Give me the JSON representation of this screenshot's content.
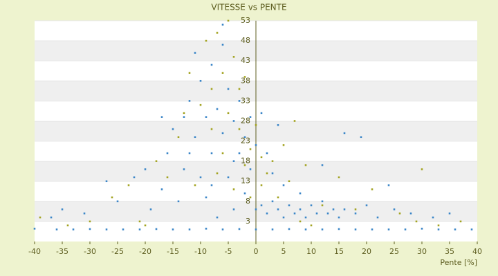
{
  "chart_data": {
    "type": "scatter",
    "title": "VITESSE vs PENTE",
    "x_label": "Pente [%]",
    "xlim": [
      -40,
      40
    ],
    "xticks": [
      -40,
      -35,
      -30,
      -25,
      -20,
      -15,
      -10,
      -5,
      0,
      5,
      10,
      15,
      20,
      25,
      30,
      35,
      40
    ],
    "ylim": [
      -2,
      53
    ],
    "yticks": [
      3,
      8,
      13,
      18,
      23,
      28,
      33,
      38,
      43,
      48,
      53
    ],
    "grid": true,
    "series": [
      {
        "color": "#3b86c8",
        "x": [
          -40,
          -36,
          -33,
          -30,
          -27,
          -24,
          -21,
          -18,
          -15,
          -12,
          -9,
          -6,
          -3,
          0,
          3,
          6,
          9,
          12,
          15,
          18,
          21,
          24,
          27,
          30,
          33,
          36,
          39,
          -37,
          -35,
          -31,
          -27,
          -25,
          -22,
          -20,
          -19,
          -17,
          -16,
          -15,
          -14,
          -13,
          -17,
          -12,
          -11,
          -10,
          -10,
          -9,
          -9,
          -8,
          -8,
          -7,
          -7,
          -6,
          -6,
          -5,
          -5,
          -4,
          -4,
          -3,
          -3,
          -2,
          -2,
          -1,
          -1,
          0,
          0,
          -6,
          -11,
          -13,
          -4,
          -8,
          -12,
          1,
          2,
          3,
          4,
          5,
          6,
          7,
          8,
          9,
          10,
          11,
          12,
          13,
          14,
          15,
          16,
          18,
          20,
          22,
          25,
          28,
          32,
          2,
          3,
          5,
          8,
          12,
          16,
          19,
          24,
          4,
          1,
          35
        ],
        "values": [
          1.2,
          1,
          1,
          1.1,
          1,
          1,
          1,
          1.1,
          1,
          1,
          1.2,
          1,
          1.1,
          1,
          1,
          1.1,
          1,
          1,
          1.1,
          1,
          1,
          1,
          1,
          1.2,
          1,
          1,
          1,
          4,
          6,
          5,
          13,
          8,
          14,
          16,
          6,
          11,
          20,
          26,
          8,
          16,
          29,
          33,
          24,
          38,
          14,
          29,
          9,
          42,
          20,
          31,
          4,
          47,
          25,
          36,
          14,
          28,
          6,
          33,
          20,
          24,
          10,
          29,
          16,
          22,
          6,
          52,
          45,
          29,
          18,
          12,
          20,
          7,
          5,
          8,
          6,
          4,
          7,
          5,
          6,
          4,
          7,
          5,
          8,
          5,
          6,
          4,
          6,
          5,
          7,
          4,
          6,
          5,
          4,
          20,
          15,
          12,
          10,
          17,
          25,
          24,
          12,
          27,
          30,
          5
        ]
      },
      {
        "color": "#a3a321",
        "x": [
          -39,
          -34,
          -30,
          -26,
          -23,
          -21,
          -18,
          -16,
          -14,
          -13,
          -12,
          -11,
          -10,
          -9,
          -8,
          -8,
          -7,
          -7,
          -6,
          -6,
          -5,
          -5,
          -4,
          -4,
          -3,
          -3,
          -2,
          -2,
          -1,
          -1,
          0,
          1,
          1,
          2,
          3,
          4,
          5,
          6,
          7,
          9,
          12,
          15,
          18,
          21,
          26,
          29,
          33,
          37,
          -20,
          10,
          30,
          8
        ],
        "values": [
          4,
          2,
          3,
          9,
          12,
          3,
          18,
          14,
          24,
          30,
          40,
          12,
          32,
          48,
          26,
          36,
          50,
          15,
          40,
          20,
          53,
          30,
          44,
          11,
          36,
          26,
          39,
          17,
          21,
          9,
          27,
          19,
          12,
          15,
          18,
          9,
          22,
          13,
          28,
          17,
          7,
          14,
          6,
          11,
          5,
          3,
          2,
          3,
          2,
          2,
          16,
          3
        ]
      }
    ]
  }
}
